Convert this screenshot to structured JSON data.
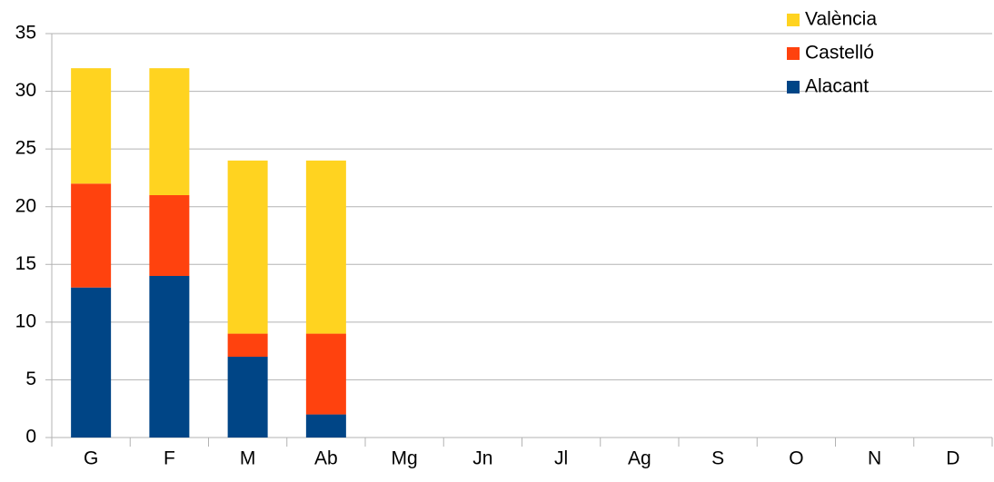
{
  "chart_data": {
    "type": "stacked_bar",
    "categories": [
      "G",
      "F",
      "M",
      "Ab",
      "Mg",
      "Jn",
      "Jl",
      "Ag",
      "S",
      "O",
      "N",
      "D"
    ],
    "series": [
      {
        "name": "Alacant",
        "color": "#004586",
        "values": [
          13,
          14,
          7,
          2,
          null,
          null,
          null,
          null,
          null,
          null,
          null,
          null
        ]
      },
      {
        "name": "Castelló",
        "color": "#ff420e",
        "values": [
          9,
          7,
          2,
          7,
          null,
          null,
          null,
          null,
          null,
          null,
          null,
          null
        ]
      },
      {
        "name": "València",
        "color": "#ffd320",
        "values": [
          10,
          11,
          15,
          15,
          null,
          null,
          null,
          null,
          null,
          null,
          null,
          null
        ]
      }
    ],
    "ylim": [
      0,
      35
    ],
    "yticks": [
      0,
      5,
      10,
      15,
      20,
      25,
      30,
      35
    ],
    "grid": true,
    "legend": "top-right"
  }
}
